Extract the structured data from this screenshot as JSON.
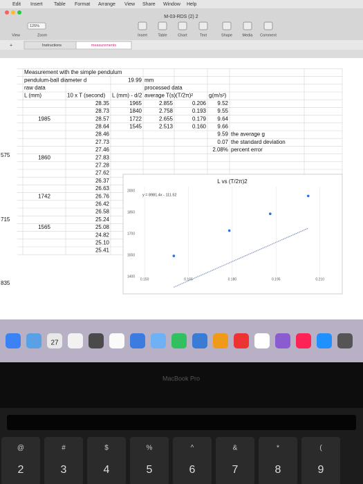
{
  "menu": [
    "Edit",
    "Insert",
    "Table",
    "Format",
    "Arrange",
    "View",
    "Share",
    "Window",
    "Help"
  ],
  "document_title": "M-03-RDS (2) 2",
  "toolbar": {
    "zoom": "125%",
    "labels": [
      "View",
      "Zoom",
      "Insert",
      "Table",
      "Chart",
      "Text",
      "Shape",
      "Media",
      "Comment"
    ]
  },
  "tabs": [
    "Instructions",
    "measurements"
  ],
  "row_labels": [
    "575",
    "715",
    "835"
  ],
  "table": {
    "rows": [
      [
        "Measurement with the simple pendulum",
        null,
        null,
        null,
        null,
        null,
        null
      ],
      [
        "pendulum-ball diameter d",
        null,
        "19.99",
        "mm",
        null,
        null,
        null
      ],
      [
        "raw data",
        null,
        null,
        "processed data",
        null,
        null,
        null
      ],
      [
        "L (mm)",
        "10 x T (second)",
        "L (mm) - d/2",
        "average T(s)",
        "(T/2π)²",
        "g(m/s²)",
        null
      ],
      [
        null,
        "28.35",
        "1965",
        "2.855",
        "0.206",
        "9.52",
        null
      ],
      [
        null,
        "28.73",
        "1840",
        "2.758",
        "0.193",
        "9.55",
        null
      ],
      [
        "1985",
        "28.57",
        "1722",
        "2.655",
        "0.179",
        "9.64",
        null
      ],
      [
        null,
        "28.64",
        "1545",
        "2.513",
        "0.160",
        "9.66",
        null
      ],
      [
        null,
        "28.46",
        null,
        null,
        null,
        "9.59",
        "the average g"
      ],
      [
        null,
        "27.73",
        null,
        null,
        null,
        "0.07",
        "the standard deviation"
      ],
      [
        null,
        "27.46",
        null,
        null,
        null,
        "2.08%",
        "percent error"
      ],
      [
        "1860",
        "27.83",
        null,
        null,
        null,
        null,
        null
      ],
      [
        null,
        "27.28",
        null,
        null,
        null,
        null,
        null
      ],
      [
        null,
        "27.62",
        null,
        null,
        null,
        null,
        null
      ],
      [
        null,
        "26.37",
        null,
        null,
        null,
        null,
        null
      ],
      [
        null,
        "26.63",
        null,
        null,
        null,
        null,
        null
      ],
      [
        "1742",
        "26.76",
        null,
        null,
        null,
        null,
        null
      ],
      [
        null,
        "26.42",
        null,
        null,
        null,
        null,
        null
      ],
      [
        null,
        "26.58",
        null,
        null,
        null,
        null,
        null
      ],
      [
        null,
        "25.24",
        null,
        null,
        null,
        null,
        null
      ],
      [
        "1565",
        "25.08",
        null,
        null,
        null,
        null,
        null
      ],
      [
        null,
        "24.82",
        null,
        null,
        null,
        null,
        null
      ],
      [
        null,
        "25.10",
        null,
        null,
        null,
        null,
        null
      ],
      [
        null,
        "25.41",
        null,
        null,
        null,
        null,
        null
      ]
    ]
  },
  "chart_data": {
    "type": "scatter",
    "title": "L vs (T/2π)2",
    "x": [
      0.206,
      0.193,
      0.179,
      0.16
    ],
    "series": [
      {
        "name": "L",
        "color": "#2f6fd6",
        "values": [
          1965,
          1840,
          1722,
          1545
        ]
      }
    ],
    "trendline": {
      "slope": 8981.4,
      "intercept": -111.52,
      "label": "y = 8981.4x - 111.52",
      "color": "#7a8fb5"
    },
    "xlim": [
      0.145,
      0.216
    ],
    "ylim": [
      1400,
      2030
    ],
    "xticks": [
      {
        "value": 0.15,
        "label": "0.150"
      },
      {
        "value": 0.165,
        "label": "0.165"
      },
      {
        "value": 0.18,
        "label": "0.180"
      },
      {
        "value": 0.195,
        "label": "0.195"
      },
      {
        "value": 0.21,
        "label": "0.210"
      }
    ],
    "yticks": [
      1400,
      1550,
      1700,
      1850,
      2000
    ],
    "grid": true
  },
  "dock": {
    "calendar": "27"
  },
  "bezel": "MacBook Pro",
  "keys": [
    [
      "@",
      "2"
    ],
    [
      "#",
      "3"
    ],
    [
      "$",
      "4"
    ],
    [
      "%",
      "5"
    ],
    [
      "^",
      "6"
    ],
    [
      "&",
      "7"
    ],
    [
      "*",
      "8"
    ],
    [
      "(",
      "9"
    ]
  ]
}
